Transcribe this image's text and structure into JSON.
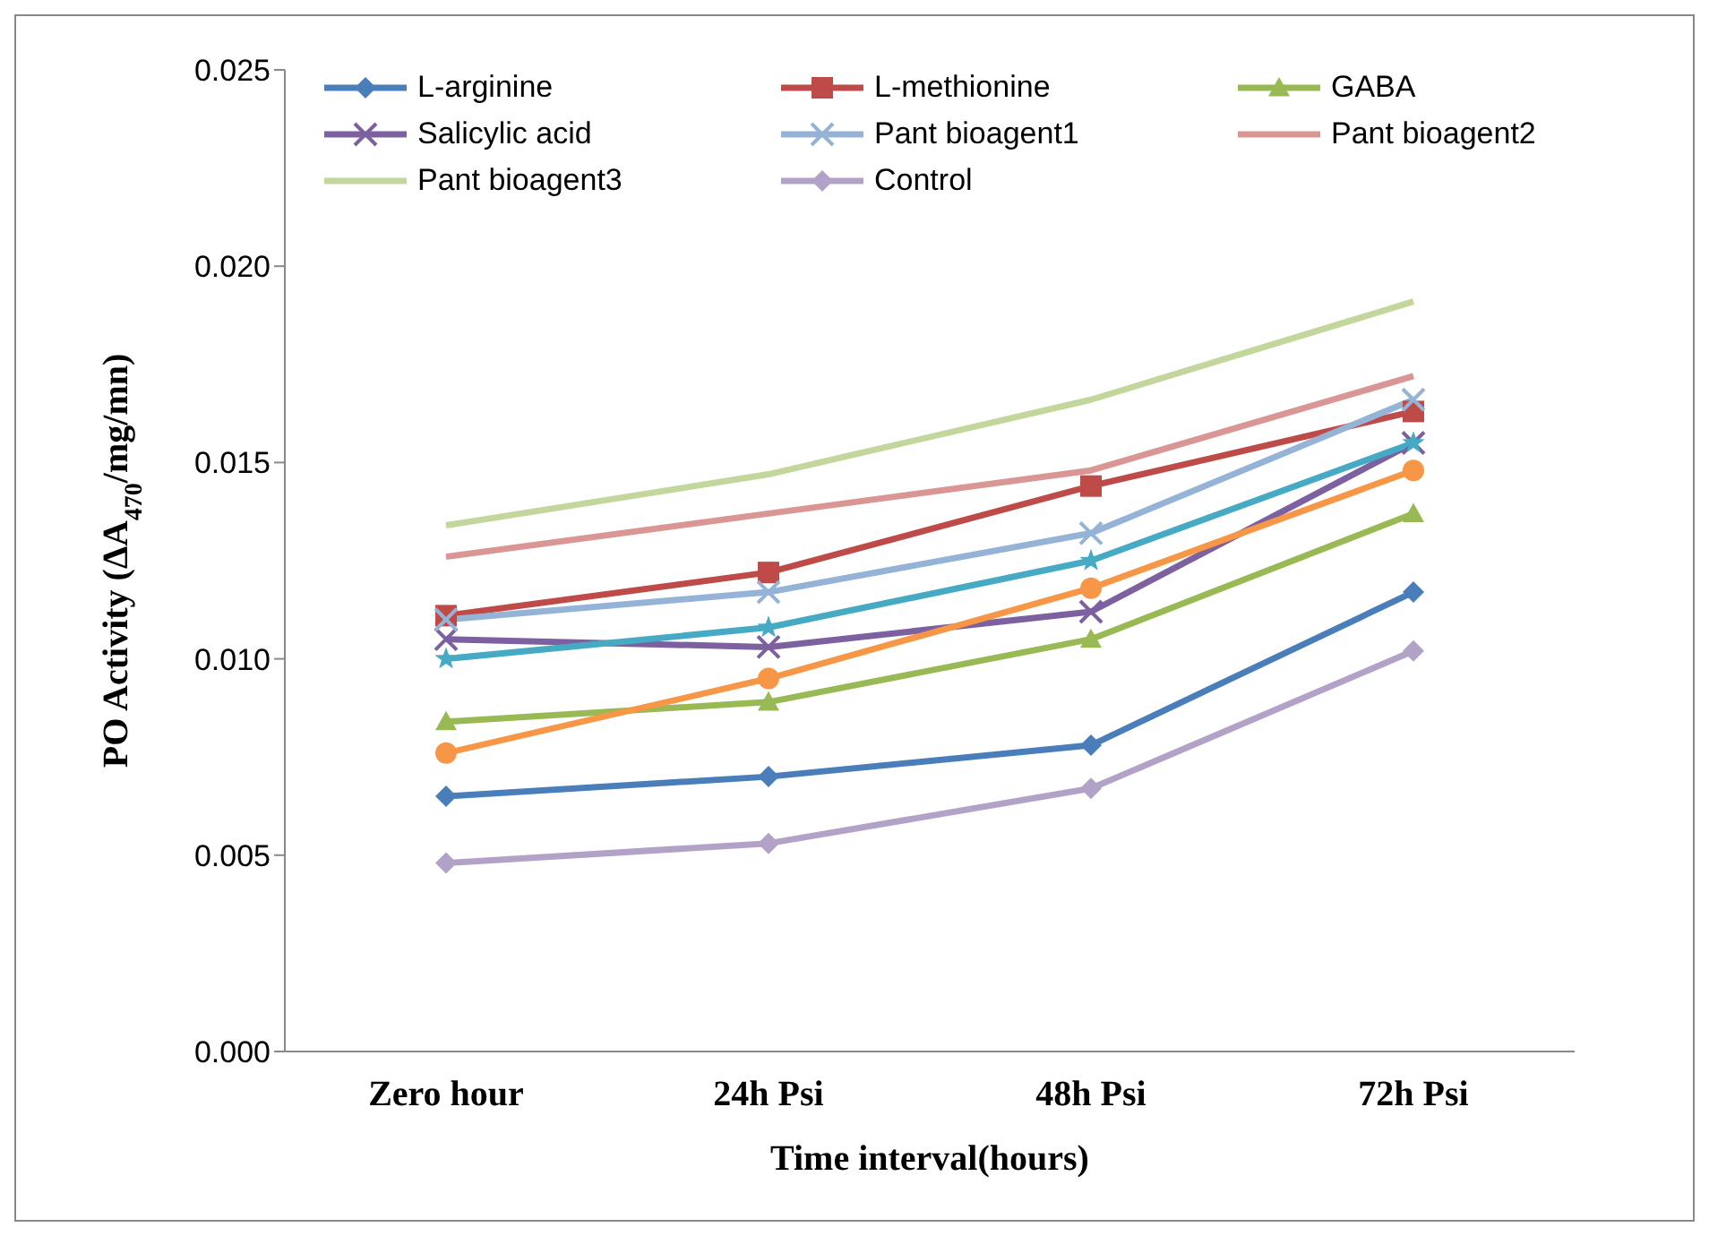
{
  "chart_data": {
    "type": "line",
    "xlabel": "Time interval(hours)",
    "ylabel": "PO Activity (ΔA$_{470}$/mg/mn)",
    "categories": [
      "Zero hour",
      "24h Psi",
      "48h Psi",
      "72h Psi"
    ],
    "ylim": [
      0,
      0.025
    ],
    "yticks": [
      {
        "value": 0,
        "label": "0.000"
      },
      {
        "value": 0.005,
        "label": "0.005"
      },
      {
        "value": 0.01,
        "label": "0.010"
      },
      {
        "value": 0.015,
        "label": "0.015"
      },
      {
        "value": 0.02,
        "label": "0.020"
      },
      {
        "value": 0.025,
        "label": "0.025"
      }
    ],
    "grid": false,
    "legend": "top",
    "line_style": "solid",
    "series": [
      {
        "name": "L-arginine",
        "color": "#4a7ebb",
        "marker": "diamond",
        "values": [
          0.0065,
          0.007,
          0.0078,
          0.0117
        ]
      },
      {
        "name": "L-methionine",
        "color": "#be4b48",
        "marker": "square",
        "values": [
          0.0111,
          0.0122,
          0.0144,
          0.0163
        ]
      },
      {
        "name": "GABA",
        "color": "#98b954",
        "marker": "triangle",
        "values": [
          0.0084,
          0.0089,
          0.0105,
          0.0137
        ]
      },
      {
        "name": "Salicylic acid",
        "color": "#7d60a0",
        "marker": "cross",
        "values": [
          0.0105,
          0.0103,
          0.0112,
          0.0155
        ]
      },
      {
        "color": "#46aac5",
        "marker": "star",
        "values": [
          0.01,
          0.0108,
          0.0125,
          0.0155
        ]
      },
      {
        "color": "#f79646",
        "marker": "circle",
        "values": [
          0.0076,
          0.0095,
          0.0118,
          0.0148
        ]
      },
      {
        "name": "Pant bioagent1",
        "color": "#95b3d7",
        "marker": "cross",
        "values": [
          0.011,
          0.0117,
          0.0132,
          0.0166
        ]
      },
      {
        "name": "Pant bioagent2",
        "color": "#d99694",
        "marker": "none",
        "values": [
          0.0126,
          0.0137,
          0.0148,
          0.0172
        ]
      },
      {
        "name": "Pant bioagent3",
        "color": "#c3d69b",
        "marker": "none",
        "values": [
          0.0134,
          0.0147,
          0.0166,
          0.0191
        ]
      },
      {
        "name": "Control",
        "color": "#b3a2c7",
        "marker": "diamond",
        "values": [
          0.0048,
          0.0053,
          0.0067,
          0.0102
        ]
      }
    ]
  }
}
